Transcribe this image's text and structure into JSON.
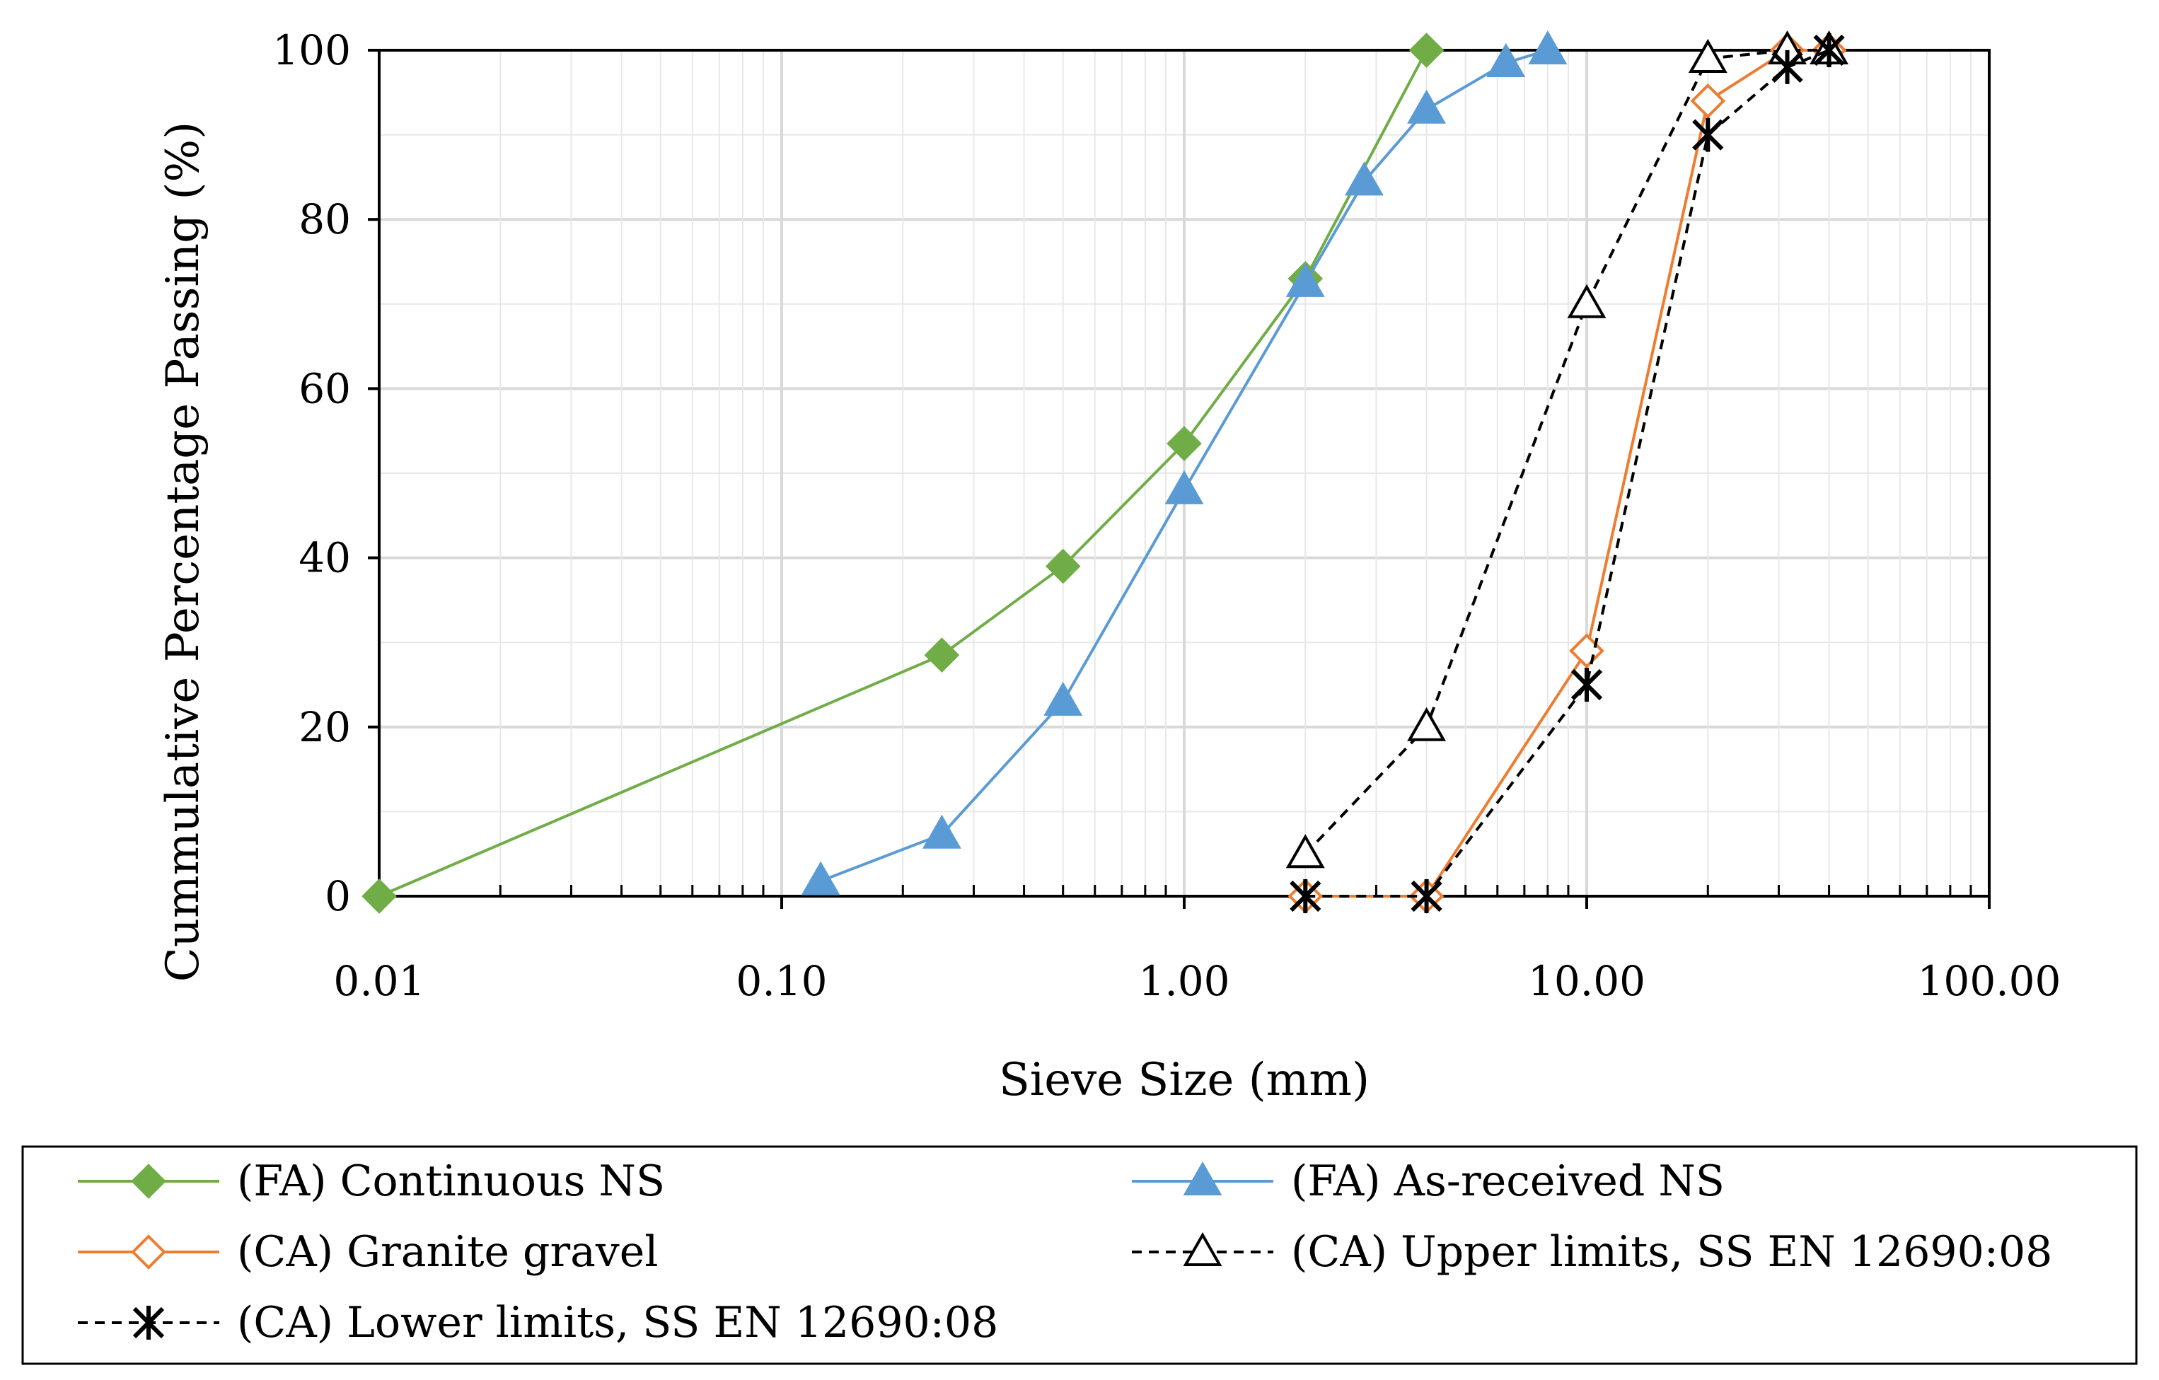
{
  "chart_data": {
    "type": "line",
    "x_scale": "log",
    "title": "",
    "xlabel": "Sieve Size (mm)",
    "ylabel": "Cummulative Percentage Passing (%)",
    "xlim": [
      0.01,
      100
    ],
    "ylim": [
      0,
      100
    ],
    "x_ticks": [
      0.01,
      0.1,
      1,
      10,
      100
    ],
    "x_tick_labels": [
      "0.01",
      "0.10",
      "1.00",
      "10.00",
      "100.00"
    ],
    "y_ticks": [
      0,
      20,
      40,
      60,
      80,
      100
    ],
    "y_tick_labels": [
      "0",
      "20",
      "40",
      "60",
      "80",
      "100"
    ],
    "grid": true,
    "legend_position": "bottom",
    "series": [
      {
        "name": "(FA) Continuous NS",
        "color": "#70AD47",
        "dash": "solid",
        "marker": "filled-diamond",
        "x": [
          0.01,
          0.25,
          0.5,
          1.0,
          2.0,
          4.0
        ],
        "y": [
          0,
          28.5,
          39,
          53.5,
          73,
          100
        ]
      },
      {
        "name": "(FA) As-received NS",
        "color": "#5B9BD5",
        "dash": "solid",
        "marker": "filled-triangle",
        "x": [
          0.125,
          0.25,
          0.5,
          1.0,
          2.0,
          2.8,
          4.0,
          6.3,
          8.0
        ],
        "y": [
          1.8,
          7.3,
          23,
          48,
          72.5,
          84.5,
          93,
          98.5,
          100
        ]
      },
      {
        "name": "(CA) Granite gravel",
        "color": "#ED7D31",
        "dash": "solid",
        "marker": "open-diamond",
        "x": [
          2.0,
          4.0,
          10.0,
          20.0,
          31.5,
          40.0
        ],
        "y": [
          0,
          0,
          29,
          94,
          100,
          100
        ]
      },
      {
        "name": "(CA) Upper limits, SS EN 12690:08",
        "color": "#000000",
        "dash": "dashed",
        "marker": "open-triangle",
        "x": [
          2.0,
          4.0,
          10.0,
          20.0,
          31.5,
          40.0
        ],
        "y": [
          5,
          20,
          70,
          99,
          100,
          100
        ]
      },
      {
        "name": "(CA) Lower limits, SS EN 12690:08",
        "color": "#000000",
        "dash": "dashed",
        "marker": "asterisk",
        "x": [
          2.0,
          4.0,
          10.0,
          20.0,
          31.5,
          40.0
        ],
        "y": [
          0,
          0,
          25,
          90,
          98,
          100
        ]
      }
    ]
  }
}
